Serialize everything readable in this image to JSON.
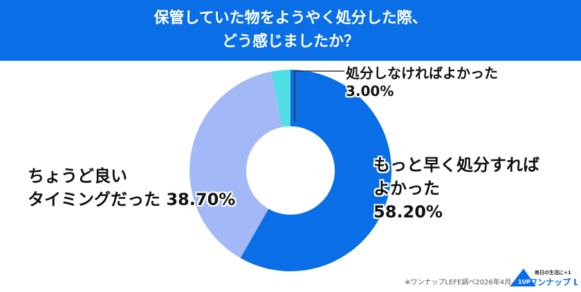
{
  "header": {
    "title_line1": "保管していた物をようやく処分した際、",
    "title_line2": "どう感じましたか？"
  },
  "chart_data": {
    "type": "pie",
    "donut": true,
    "start": "top",
    "direction": "clockwise",
    "slices": [
      {
        "label": "もっと早く処分すればよかった",
        "value": 58.2,
        "display": "58.20%",
        "color": "#0a6fe6"
      },
      {
        "label": "ちょうど良いタイミングだった",
        "value": 38.7,
        "display": "38.70%",
        "color": "#a3b8f6"
      },
      {
        "label": "処分しなければよかった",
        "value": 3.0,
        "display": "3.00%",
        "color": "#50dfe2"
      }
    ]
  },
  "labels": {
    "s0_line1": "もっと早く処分すれば",
    "s0_line2": "よかった",
    "s0_pct": "58.20%",
    "s1_line1": "ちょうど良い",
    "s1_line2": "タイミングだった 38.70%",
    "s2_line1": "処分しなければよかった",
    "s2_pct": "3.00%"
  },
  "footer": {
    "source": "※ワンナップLEFE調べ2026年4月",
    "logo_text": "ワンナップ LIFE",
    "logo_tagline": "毎日の生活に+1",
    "logo_badge": "1UP"
  }
}
